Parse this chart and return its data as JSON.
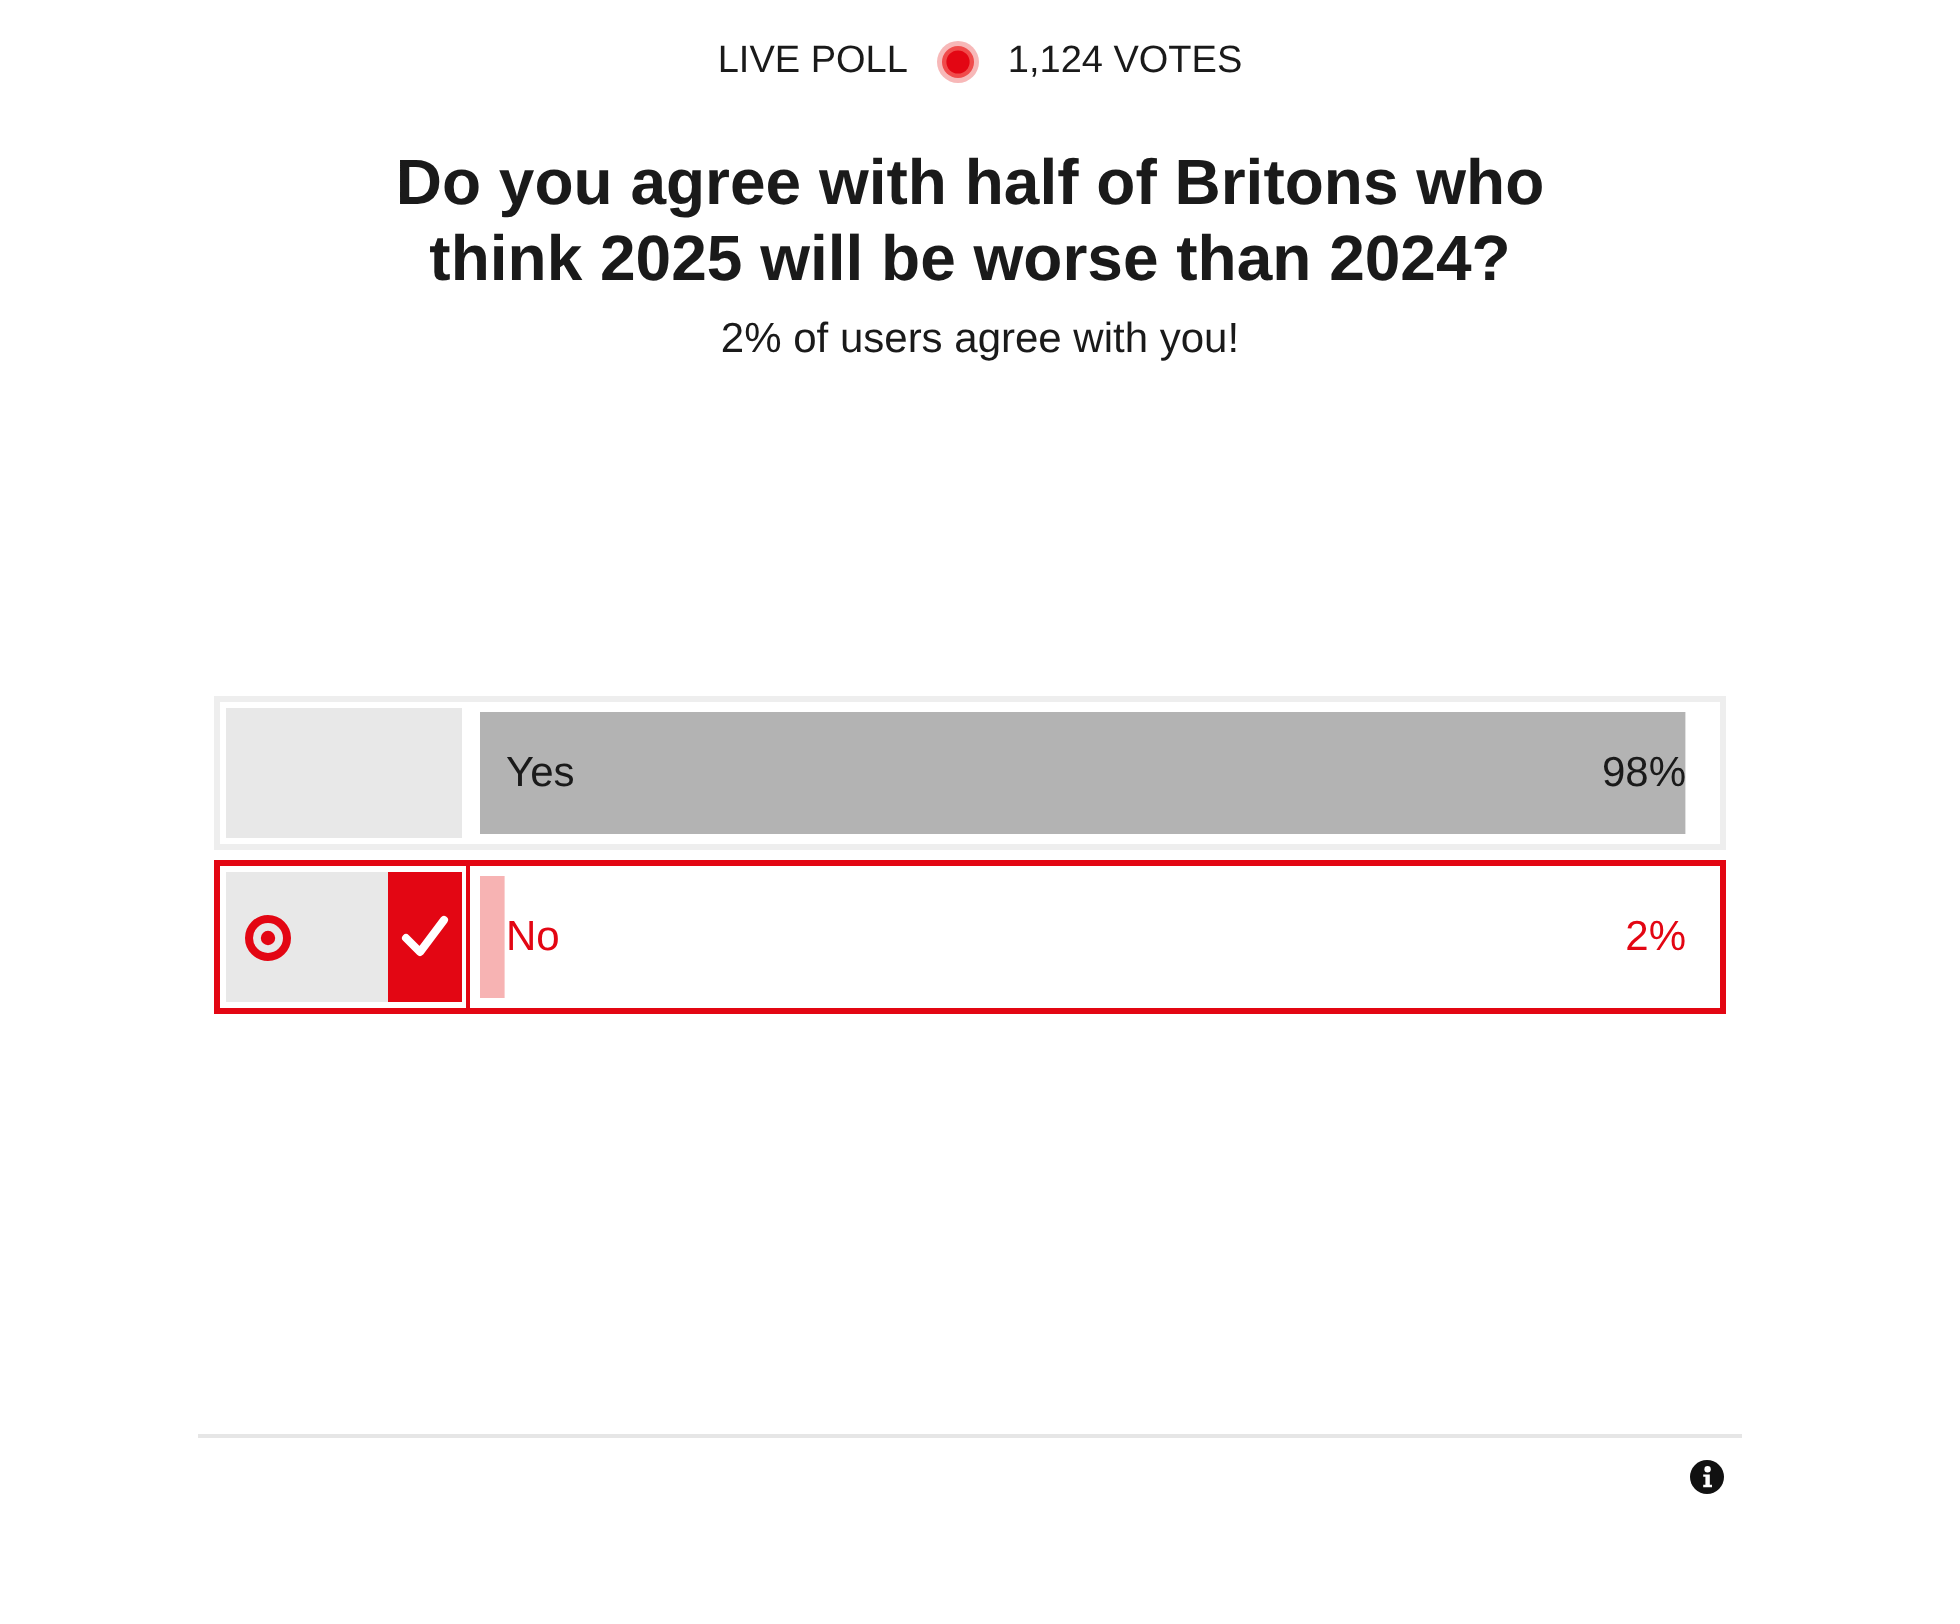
{
  "chart_data": {
    "type": "bar",
    "orientation": "horizontal",
    "title": "Do you agree with half of Britons who think 2025 will be worse than 2024?",
    "subtitle": "2% of users agree with you!",
    "categories": [
      "Yes",
      "No"
    ],
    "values": [
      98,
      2
    ],
    "colors": [
      "#b3b3b3",
      "#f7b3b3"
    ],
    "value_labels": [
      "98%",
      "2%"
    ],
    "annotations": [
      "LIVE POLL",
      "1,124 VOTES"
    ]
  }
}
